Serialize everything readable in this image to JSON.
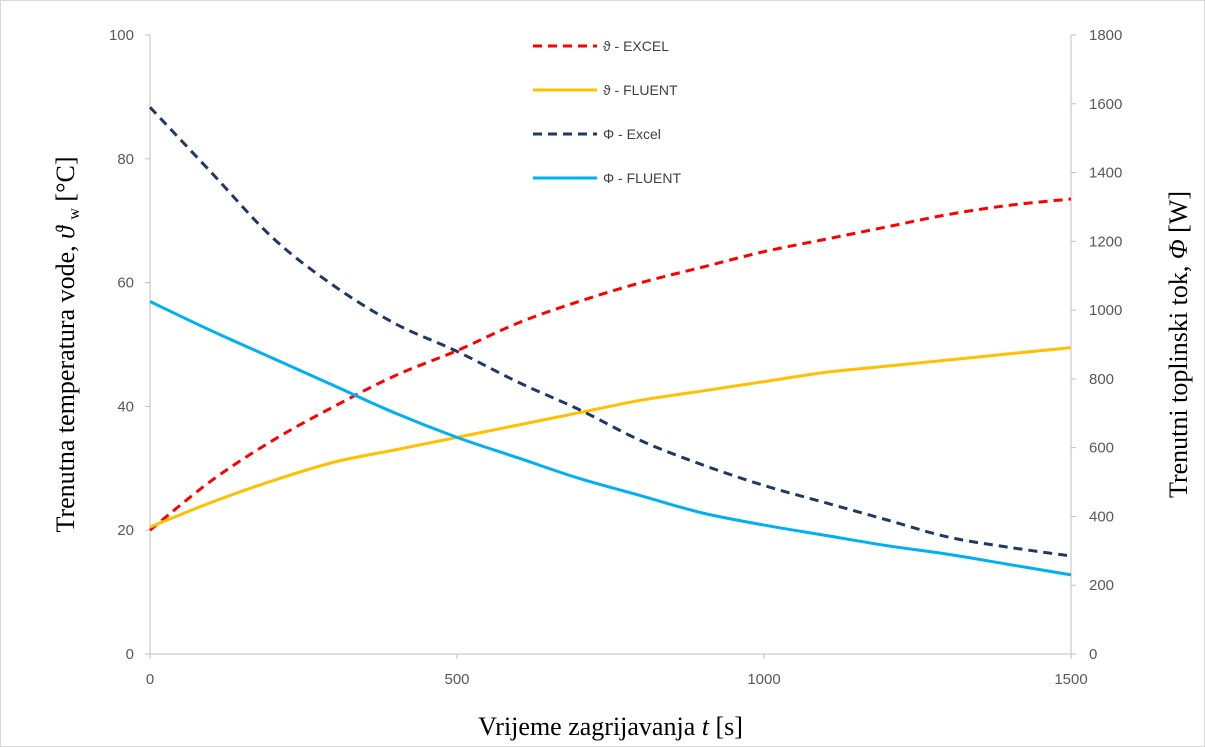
{
  "chart_data": {
    "type": "line",
    "x_axis": {
      "label": "Vrijeme  zagrijavanja",
      "label_var": "t",
      "label_unit": "[s]",
      "range": [
        0,
        1500
      ],
      "ticks": [
        "0",
        "500",
        "1000",
        "1500"
      ]
    },
    "y_left": {
      "label": "Trenutna temperatura vode,",
      "label_var": "ϑ",
      "label_sub": "w",
      "label_unit": "[°C]",
      "range": [
        0,
        100
      ],
      "ticks": [
        "0",
        "20",
        "40",
        "60",
        "80",
        "100"
      ]
    },
    "y_right": {
      "label": "Trenutni toplinski tok,",
      "label_var": "Φ",
      "label_unit": "[W]",
      "range": [
        0,
        1800
      ],
      "ticks": [
        "0",
        "200",
        "400",
        "600",
        "800",
        "1000",
        "1200",
        "1400",
        "1600",
        "1800"
      ]
    },
    "grid": false,
    "legend_position": "top-center",
    "x": [
      0,
      100,
      200,
      300,
      400,
      500,
      600,
      700,
      800,
      900,
      1000,
      1100,
      1200,
      1300,
      1400,
      1500
    ],
    "series": [
      {
        "name": "ϑ - EXCEL",
        "axis": "left",
        "color": "#ff0000",
        "dash": true,
        "values": [
          20,
          28,
          34.5,
          40,
          45,
          49,
          53.5,
          57,
          60,
          62.5,
          65,
          67,
          69,
          71,
          72.5,
          73.5
        ]
      },
      {
        "name": "ϑ - FLUENT",
        "axis": "left",
        "color": "#ffc000",
        "dash": false,
        "values": [
          20.5,
          24.5,
          28,
          31,
          33,
          35,
          37,
          39,
          41,
          42.5,
          44,
          45.5,
          46.5,
          47.5,
          48.5,
          49.5
        ]
      },
      {
        "name": "Φ - Excel",
        "axis": "right",
        "color": "#1f3864",
        "dash": true,
        "values": [
          1590,
          1400,
          1210,
          1070,
          960,
          880,
          790,
          710,
          620,
          550,
          490,
          440,
          390,
          340,
          310,
          285
        ]
      },
      {
        "name": "Φ - FLUENT",
        "axis": "right",
        "color": "#00b0f0",
        "dash": false,
        "values": [
          1025,
          940,
          860,
          780,
          700,
          630,
          570,
          510,
          460,
          410,
          375,
          345,
          315,
          290,
          260,
          230
        ]
      }
    ]
  }
}
